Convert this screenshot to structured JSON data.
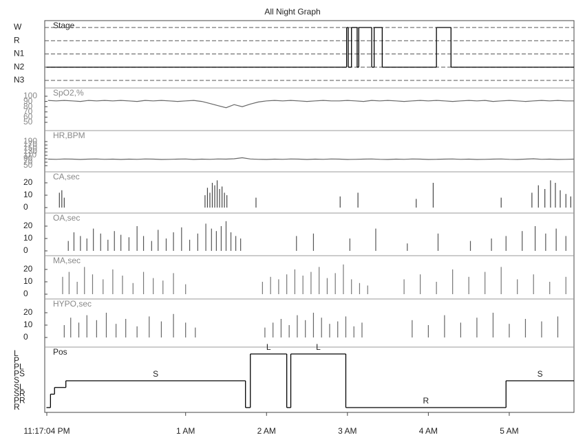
{
  "title": "All Night Graph",
  "xlim": [
    23.2844,
    29.8
  ],
  "xticks": [
    {
      "value": 23.2844,
      "label": "11:17:04 PM"
    },
    {
      "value": 25,
      "label": "1 AM"
    },
    {
      "value": 26,
      "label": "2 AM"
    },
    {
      "value": 27,
      "label": "3 AM"
    },
    {
      "value": 28,
      "label": "4 AM"
    },
    {
      "value": 29,
      "label": "5 AM"
    }
  ],
  "chart_data": [
    {
      "type": "step",
      "label": "Stage",
      "color": "#000000",
      "grid": true,
      "categories": [
        "W",
        "R",
        "N1",
        "N2",
        "N3"
      ],
      "x": [
        23.28,
        26.99,
        27.01,
        27.05,
        27.12,
        27.14,
        27.3,
        27.33,
        27.43,
        28.1,
        28.28
      ],
      "values": [
        "N2",
        "W",
        "N2",
        "W",
        "N2",
        "W",
        "N2",
        "W",
        "N2",
        "W",
        "N2"
      ]
    },
    {
      "type": "line",
      "label": "SpO2,%",
      "color": "#666666",
      "ylim": [
        50,
        100
      ],
      "yticks": [
        50,
        60,
        70,
        80,
        90,
        100
      ],
      "x": [
        23.3,
        23.4,
        23.5,
        23.6,
        23.7,
        23.8,
        23.9,
        24.0,
        24.1,
        24.2,
        24.3,
        24.4,
        24.5,
        24.6,
        24.7,
        24.8,
        24.9,
        25.0,
        25.1,
        25.2,
        25.3,
        25.4,
        25.5,
        25.6,
        25.7,
        25.8,
        25.9,
        26.0,
        26.1,
        26.2,
        26.3,
        26.4,
        26.5,
        26.6,
        26.7,
        26.8,
        26.9,
        27.0,
        27.1,
        27.2,
        27.3,
        27.4,
        27.5,
        27.6,
        27.7,
        27.8,
        27.9,
        28.0,
        28.1,
        28.2,
        28.3,
        28.4,
        28.5,
        28.6,
        28.7,
        28.8,
        28.9,
        29.0,
        29.1,
        29.2,
        29.3,
        29.4,
        29.5,
        29.6,
        29.7,
        29.8
      ],
      "values": [
        92,
        91,
        92,
        91,
        90,
        92,
        91,
        92,
        91,
        92,
        91,
        90,
        92,
        91,
        92,
        91,
        90,
        91,
        92,
        90,
        86,
        82,
        78,
        84,
        80,
        85,
        89,
        91,
        92,
        91,
        92,
        91,
        90,
        91,
        92,
        91,
        91,
        92,
        91,
        90,
        92,
        91,
        92,
        91,
        90,
        91,
        92,
        91,
        92,
        91,
        90,
        91,
        92,
        91,
        92,
        90,
        91,
        92,
        91,
        90,
        91,
        92,
        91,
        92,
        91,
        91
      ]
    },
    {
      "type": "line",
      "label": "HR,BPM",
      "color": "#666666",
      "ylim": [
        45,
        195
      ],
      "yticks": [
        50,
        70,
        90,
        110,
        130,
        150,
        170,
        190
      ],
      "x": [
        23.3,
        23.4,
        23.5,
        23.6,
        23.7,
        23.8,
        23.9,
        24.0,
        24.1,
        24.2,
        24.3,
        24.4,
        24.5,
        24.6,
        24.7,
        24.8,
        24.9,
        25.0,
        25.1,
        25.2,
        25.3,
        25.4,
        25.5,
        25.6,
        25.7,
        25.8,
        25.9,
        26.0,
        26.1,
        26.2,
        26.3,
        26.4,
        26.5,
        26.6,
        26.7,
        26.8,
        26.9,
        27.0,
        27.1,
        27.2,
        27.3,
        27.4,
        27.5,
        27.6,
        27.7,
        27.8,
        27.9,
        28.0,
        28.1,
        28.2,
        28.3,
        28.4,
        28.5,
        28.6,
        28.7,
        28.8,
        28.9,
        29.0,
        29.1,
        29.2,
        29.3,
        29.4,
        29.5,
        29.6,
        29.7,
        29.8
      ],
      "values": [
        88,
        87,
        89,
        88,
        86,
        88,
        89,
        87,
        88,
        86,
        88,
        87,
        89,
        88,
        86,
        87,
        88,
        89,
        86,
        88,
        87,
        89,
        88,
        90,
        96,
        89,
        87,
        86,
        88,
        87,
        89,
        88,
        86,
        88,
        87,
        89,
        88,
        86,
        87,
        88,
        89,
        87,
        86,
        88,
        87,
        89,
        88,
        86,
        87,
        88,
        89,
        87,
        88,
        86,
        87,
        88,
        89,
        87,
        86,
        88,
        90,
        87,
        88,
        86,
        87,
        88
      ]
    },
    {
      "type": "event",
      "label": "CA,sec",
      "color": "#444444",
      "ylim": [
        0,
        25
      ],
      "yticks": [
        0,
        10,
        20
      ],
      "x": [
        23.44,
        23.47,
        23.5,
        25.24,
        25.27,
        25.3,
        25.33,
        25.36,
        25.39,
        25.42,
        25.45,
        25.48,
        25.51,
        25.87,
        26.91,
        27.13,
        27.85,
        28.06,
        28.9,
        29.28,
        29.36,
        29.44,
        29.51,
        29.57,
        29.63,
        29.7,
        29.76
      ],
      "values": [
        12,
        14,
        8,
        10,
        16,
        12,
        20,
        18,
        22,
        15,
        17,
        12,
        10,
        8,
        9,
        12,
        7,
        20,
        8,
        12,
        18,
        15,
        22,
        20,
        14,
        11,
        9
      ]
    },
    {
      "type": "event",
      "label": "OA,sec",
      "color": "#555555",
      "ylim": [
        0,
        25
      ],
      "yticks": [
        0,
        10,
        20
      ],
      "x": [
        23.55,
        23.62,
        23.7,
        23.78,
        23.86,
        23.95,
        24.04,
        24.12,
        24.2,
        24.3,
        24.4,
        24.48,
        24.58,
        24.66,
        24.76,
        24.85,
        24.95,
        25.05,
        25.15,
        25.25,
        25.32,
        25.38,
        25.44,
        25.5,
        25.56,
        25.62,
        25.68,
        26.37,
        26.58,
        27.03,
        27.35,
        27.74,
        28.12,
        28.52,
        28.78,
        28.96,
        29.16,
        29.32,
        29.45,
        29.58,
        29.7
      ],
      "values": [
        8,
        15,
        12,
        10,
        18,
        14,
        9,
        16,
        13,
        11,
        20,
        12,
        8,
        17,
        10,
        15,
        19,
        9,
        14,
        22,
        18,
        16,
        20,
        24,
        15,
        12,
        10,
        12,
        14,
        10,
        18,
        6,
        14,
        8,
        10,
        12,
        16,
        20,
        14,
        18,
        12
      ]
    },
    {
      "type": "event",
      "label": "MA,sec",
      "color": "#777777",
      "ylim": [
        0,
        25
      ],
      "yticks": [
        0,
        10,
        20
      ],
      "x": [
        23.48,
        23.56,
        23.66,
        23.75,
        23.85,
        23.98,
        24.1,
        24.22,
        24.35,
        24.48,
        24.6,
        24.72,
        24.85,
        25.0,
        25.95,
        26.05,
        26.15,
        26.25,
        26.35,
        26.45,
        26.55,
        26.65,
        26.75,
        26.85,
        26.95,
        27.05,
        27.15,
        27.25,
        27.7,
        27.9,
        28.1,
        28.3,
        28.5,
        28.7,
        28.9,
        29.1,
        29.3,
        29.5,
        29.7
      ],
      "values": [
        14,
        18,
        10,
        22,
        16,
        12,
        20,
        15,
        9,
        18,
        13,
        11,
        17,
        8,
        10,
        14,
        12,
        16,
        20,
        15,
        18,
        22,
        13,
        17,
        24,
        12,
        9,
        7,
        12,
        16,
        10,
        20,
        14,
        18,
        22,
        12,
        16,
        10,
        14
      ]
    },
    {
      "type": "event",
      "label": "HYPO,sec",
      "color": "#666666",
      "ylim": [
        0,
        25
      ],
      "yticks": [
        0,
        10,
        20
      ],
      "x": [
        23.5,
        23.58,
        23.68,
        23.78,
        23.9,
        24.02,
        24.14,
        24.26,
        24.4,
        24.55,
        24.7,
        24.85,
        25.0,
        25.12,
        25.98,
        26.08,
        26.18,
        26.28,
        26.38,
        26.48,
        26.58,
        26.68,
        26.78,
        26.88,
        26.98,
        27.08,
        27.18,
        27.8,
        28.0,
        28.2,
        28.4,
        28.6,
        28.8,
        29.0,
        29.2,
        29.4,
        29.6
      ],
      "values": [
        10,
        16,
        12,
        18,
        14,
        20,
        11,
        15,
        9,
        17,
        13,
        19,
        12,
        8,
        8,
        12,
        15,
        10,
        18,
        14,
        20,
        16,
        11,
        13,
        17,
        9,
        12,
        14,
        10,
        18,
        12,
        16,
        20,
        11,
        15,
        13,
        17
      ]
    },
    {
      "type": "step",
      "label": "Pos",
      "color": "#000000",
      "grid": false,
      "categories": [
        "L",
        "P",
        "PL",
        "PS",
        "S",
        "SL",
        "SR",
        "PR",
        "R"
      ],
      "x": [
        23.28,
        23.33,
        23.38,
        23.52,
        25.74,
        25.8,
        26.25,
        26.3,
        26.98,
        28.96
      ],
      "values": [
        "R",
        "SR",
        "SL",
        "S",
        "R",
        "L",
        "R",
        "L",
        "R",
        "S"
      ]
    }
  ]
}
